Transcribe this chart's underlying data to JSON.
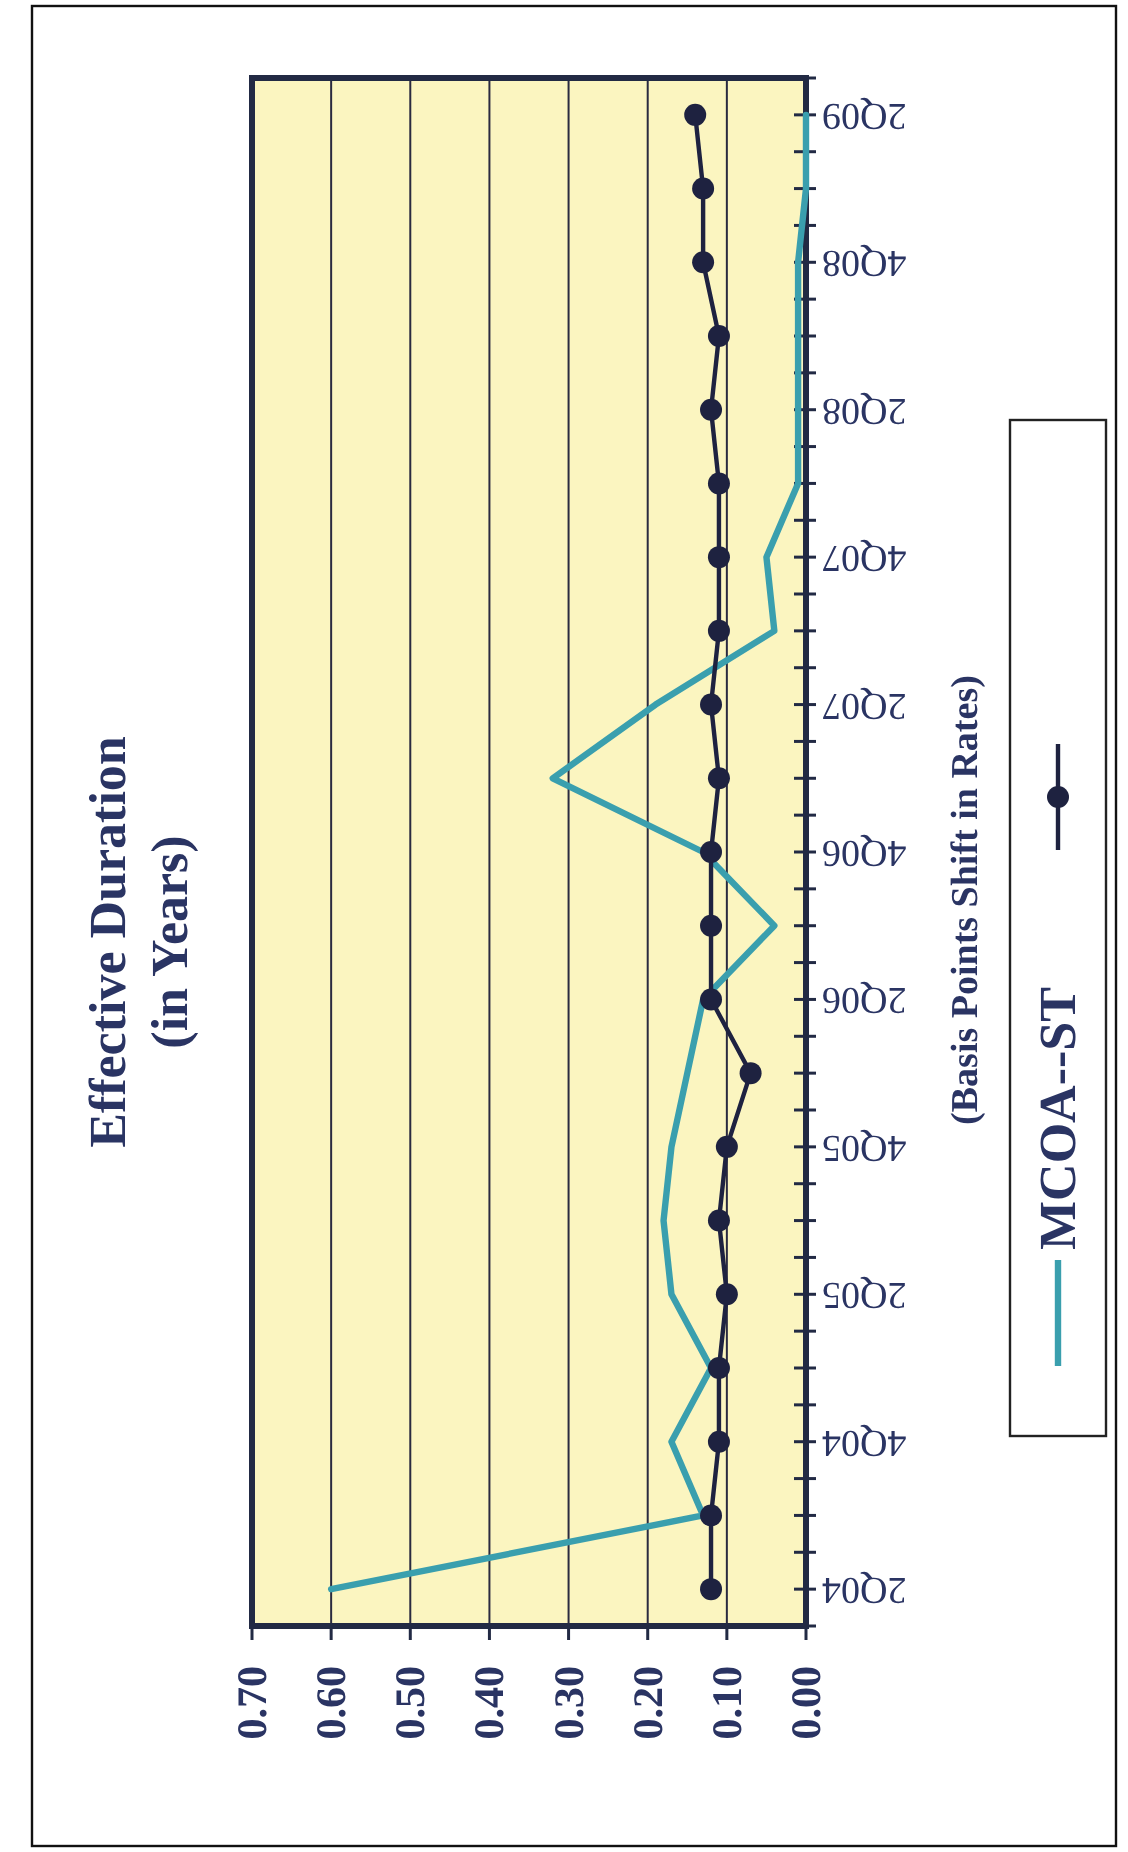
{
  "chart_data": {
    "type": "line",
    "orientation": "horizontal",
    "title": "Effective Duration",
    "subtitle": "(in Years)",
    "ylabel": "(Basis Points Shift in Rates)",
    "categories": [
      "2Q09",
      null,
      "4Q08",
      null,
      "2Q08",
      null,
      "4Q07",
      null,
      "2Q07",
      null,
      "4Q06",
      null,
      "2Q06",
      null,
      "4Q05",
      null,
      "2Q05",
      null,
      "4Q04",
      null,
      "2Q04"
    ],
    "xlim": [
      0.7,
      0
    ],
    "xticks": [
      {
        "value": 0,
        "label": "0.00"
      },
      {
        "value": 0.1,
        "label": "0.10"
      },
      {
        "value": 0.2,
        "label": "0.20"
      },
      {
        "value": 0.3,
        "label": "0.30"
      },
      {
        "value": 0.4,
        "label": "0.40"
      },
      {
        "value": 0.5,
        "label": "0.50"
      },
      {
        "value": 0.6,
        "label": "0.60"
      },
      {
        "value": 0.7,
        "label": "0.70"
      }
    ],
    "grid": "x",
    "legend": "right",
    "series": [
      {
        "name": "MCOA--ST",
        "color": "#3a9fae",
        "marker": "none",
        "values": [
          0.0,
          0.0,
          0.01,
          0.01,
          0.01,
          0.01,
          0.05,
          0.04,
          0.19,
          0.32,
          0.13,
          0.04,
          0.13,
          0.15,
          0.17,
          0.18,
          0.17,
          0.12,
          0.17,
          0.13,
          0.6
        ]
      },
      {
        "color": "#1e2240",
        "marker": "circle",
        "values": [
          0.14,
          0.13,
          0.13,
          0.11,
          0.12,
          0.11,
          0.11,
          0.11,
          0.12,
          0.11,
          0.12,
          0.12,
          0.12,
          0.07,
          0.1,
          0.11,
          0.1,
          0.11,
          0.11,
          0.12,
          0.12
        ]
      }
    ]
  }
}
